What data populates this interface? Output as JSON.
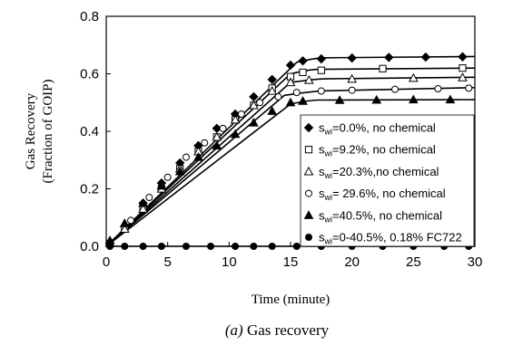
{
  "chart_data": {
    "type": "scatter",
    "title": "",
    "caption_letter": "(a)",
    "caption_text": " Gas recovery",
    "xlabel": "Time (minute)",
    "ylabel_line1": "Gas Recovery",
    "ylabel_line2": "(Fraction of GOIP)",
    "xlim": [
      0,
      30
    ],
    "ylim": [
      0,
      0.8
    ],
    "xticks": [
      0,
      5,
      10,
      15,
      20,
      25,
      30
    ],
    "yticks": [
      0.0,
      0.2,
      0.4,
      0.6,
      0.8
    ],
    "xtick_labels": [
      "0",
      "5",
      "10",
      "15",
      "20",
      "25",
      "30"
    ],
    "ytick_labels": [
      "0.0",
      "0.2",
      "0.4",
      "0.6",
      "0.8"
    ],
    "grid": false,
    "legend_position": "lower-right",
    "series": [
      {
        "marker": "diamond-filled",
        "legend_sub": "wi",
        "legend_text": "=0.0%, no chemical",
        "points": [
          [
            0.3,
            0.01
          ],
          [
            1.5,
            0.07
          ],
          [
            3,
            0.15
          ],
          [
            4.5,
            0.22
          ],
          [
            6,
            0.29
          ],
          [
            7.5,
            0.35
          ],
          [
            9,
            0.41
          ],
          [
            10.5,
            0.46
          ],
          [
            12,
            0.52
          ],
          [
            13.5,
            0.58
          ],
          [
            15,
            0.63
          ],
          [
            16,
            0.645
          ],
          [
            17.5,
            0.652
          ],
          [
            20,
            0.655
          ],
          [
            23,
            0.657
          ],
          [
            26,
            0.658
          ],
          [
            29,
            0.659
          ]
        ],
        "curve": [
          [
            0,
            0
          ],
          [
            15.5,
            0.64
          ],
          [
            17,
            0.655
          ],
          [
            30,
            0.66
          ]
        ]
      },
      {
        "marker": "square-open",
        "legend_sub": "wi",
        "legend_text": "=9.2%, no chemical",
        "points": [
          [
            0.3,
            0.01
          ],
          [
            1.5,
            0.06
          ],
          [
            3,
            0.13
          ],
          [
            4.5,
            0.2
          ],
          [
            6,
            0.27
          ],
          [
            7.5,
            0.33
          ],
          [
            9,
            0.38
          ],
          [
            10.5,
            0.44
          ],
          [
            12,
            0.49
          ],
          [
            13.5,
            0.55
          ],
          [
            15,
            0.59
          ],
          [
            16,
            0.605
          ],
          [
            17.5,
            0.612
          ],
          [
            22.5,
            0.618
          ],
          [
            29,
            0.62
          ]
        ],
        "curve": [
          [
            0,
            0
          ],
          [
            15,
            0.6
          ],
          [
            16.5,
            0.615
          ],
          [
            30,
            0.62
          ]
        ]
      },
      {
        "marker": "triangle-open",
        "legend_sub": "wi",
        "legend_text": "=20.3%,no chemical",
        "points": [
          [
            0.3,
            0.01
          ],
          [
            1.5,
            0.06
          ],
          [
            3,
            0.13
          ],
          [
            4.5,
            0.2
          ],
          [
            6,
            0.27
          ],
          [
            7.5,
            0.33
          ],
          [
            9,
            0.38
          ],
          [
            10.5,
            0.44
          ],
          [
            12,
            0.49
          ],
          [
            13.5,
            0.54
          ],
          [
            15,
            0.57
          ],
          [
            16.5,
            0.578
          ],
          [
            20,
            0.582
          ],
          [
            25,
            0.585
          ],
          [
            29,
            0.587
          ]
        ],
        "curve": [
          [
            0,
            0
          ],
          [
            15,
            0.57
          ],
          [
            17,
            0.582
          ],
          [
            30,
            0.588
          ]
        ]
      },
      {
        "marker": "circle-open",
        "legend_sub": "wi",
        "legend_text": "= 29.6%, no chemical",
        "points": [
          [
            0.3,
            0.01
          ],
          [
            2,
            0.09
          ],
          [
            3.5,
            0.17
          ],
          [
            5,
            0.24
          ],
          [
            6.5,
            0.31
          ],
          [
            8,
            0.36
          ],
          [
            9.5,
            0.41
          ],
          [
            11,
            0.46
          ],
          [
            12.5,
            0.5
          ],
          [
            14,
            0.52
          ],
          [
            15.5,
            0.535
          ],
          [
            17.5,
            0.54
          ],
          [
            20,
            0.543
          ],
          [
            23.5,
            0.546
          ],
          [
            27,
            0.548
          ],
          [
            29.5,
            0.55
          ]
        ],
        "curve": [
          [
            0,
            0
          ],
          [
            14.5,
            0.525
          ],
          [
            17,
            0.54
          ],
          [
            30,
            0.552
          ]
        ]
      },
      {
        "marker": "triangle-filled",
        "legend_sub": "wi",
        "legend_text": "=40.5%, no chemical",
        "points": [
          [
            0.3,
            0.02
          ],
          [
            1.5,
            0.08
          ],
          [
            3,
            0.15
          ],
          [
            4.5,
            0.21
          ],
          [
            6,
            0.26
          ],
          [
            7.5,
            0.31
          ],
          [
            9,
            0.35
          ],
          [
            10.5,
            0.39
          ],
          [
            12,
            0.43
          ],
          [
            13.5,
            0.47
          ],
          [
            15,
            0.5
          ],
          [
            16,
            0.505
          ],
          [
            19,
            0.508
          ],
          [
            22,
            0.509
          ],
          [
            25,
            0.51
          ],
          [
            28,
            0.51
          ]
        ],
        "curve": [
          [
            0,
            0
          ],
          [
            15,
            0.495
          ],
          [
            16.5,
            0.508
          ],
          [
            30,
            0.51
          ]
        ]
      },
      {
        "marker": "circle-filled",
        "legend_sub": "wi",
        "legend_text": "=0-40.5%, 0.18% FC722",
        "points": [
          [
            0.3,
            0
          ],
          [
            1.5,
            0
          ],
          [
            3,
            0
          ],
          [
            4.5,
            0
          ],
          [
            6.5,
            0
          ],
          [
            8.5,
            0
          ],
          [
            10.5,
            0
          ],
          [
            12,
            0
          ],
          [
            13.5,
            0
          ],
          [
            15.5,
            0
          ],
          [
            17.5,
            0
          ],
          [
            20,
            0
          ],
          [
            22.5,
            0
          ],
          [
            25,
            0
          ],
          [
            27.5,
            0
          ],
          [
            29.5,
            0
          ]
        ],
        "curve": [
          [
            0,
            0
          ],
          [
            30,
            0
          ]
        ]
      }
    ]
  }
}
